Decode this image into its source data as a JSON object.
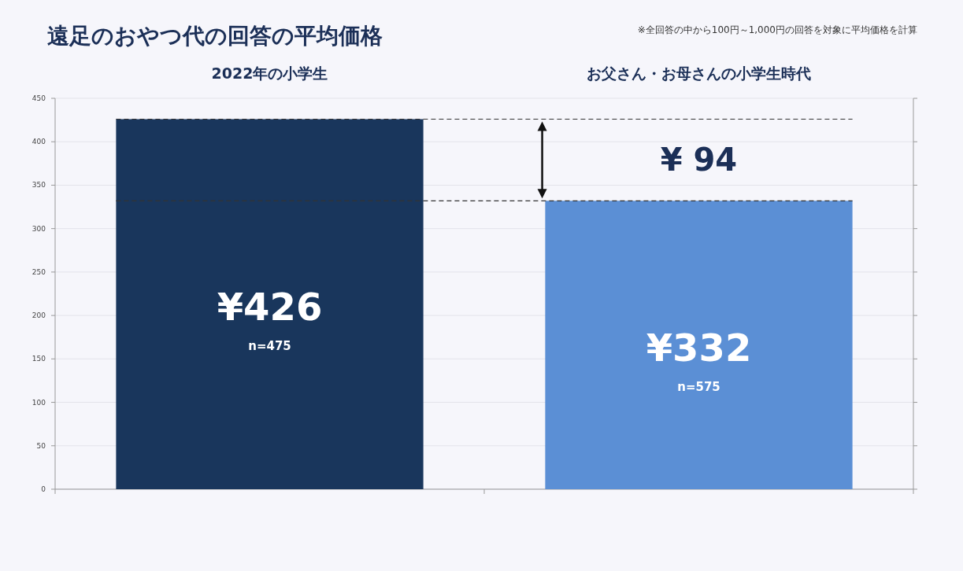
{
  "chart_data": {
    "type": "bar",
    "title": "遠足のおやつ代の回答の平均価格",
    "annotations": [
      "※全回答の中から100円～1,000円の回答を対象に平均価格を計算",
      "n=475",
      "n=575",
      "¥ 94"
    ],
    "categories": [
      "2022年の小学生",
      "お父さん・お母さんの小学生時代"
    ],
    "values": [
      426,
      332
    ],
    "colors": [
      "#19365c",
      "#5b8fd5"
    ],
    "value_labels": [
      "¥426",
      "¥332"
    ],
    "ref_lines": [
      {
        "axis": "y",
        "value": 426,
        "color": "#333333",
        "line_style": "dashed"
      },
      {
        "axis": "y",
        "value": 332,
        "color": "#333333",
        "line_style": "dashed"
      }
    ],
    "ylim": [
      0,
      450
    ],
    "yticks": [
      0,
      50,
      100,
      150,
      200,
      250,
      300,
      350,
      400,
      450
    ],
    "grid": "y"
  }
}
